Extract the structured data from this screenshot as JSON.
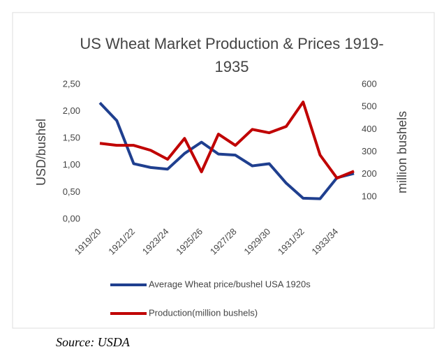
{
  "chart_data": {
    "type": "line",
    "title": "US Wheat Market Production & Prices 1919-1935",
    "ylabel": "USD/bushel",
    "y2label": "million bushels",
    "categories": [
      "1919/20",
      null,
      "1921/22",
      null,
      "1923/24",
      null,
      "1925/26",
      null,
      "1927/28",
      null,
      "1929/30",
      null,
      "1931/32",
      null,
      "1933/34",
      null
    ],
    "series": [
      {
        "name": "Average Wheat price/bushel USA 1920s",
        "color": "#1f3f8f",
        "axis": "y",
        "values": [
          2.16,
          1.83,
          1.03,
          0.96,
          0.93,
          1.22,
          1.43,
          1.21,
          1.19,
          0.99,
          1.03,
          0.67,
          0.39,
          0.38,
          0.77,
          0.85
        ]
      },
      {
        "name": "Production(million bushels)",
        "color": "#c00000",
        "axis": "y2",
        "values": [
          338,
          329,
          329,
          307,
          267,
          360,
          211,
          379,
          329,
          400,
          385,
          413,
          522,
          286,
          183,
          214
        ]
      }
    ],
    "ylim": [
      0,
      2.5
    ],
    "yticks": [
      {
        "value": 0,
        "label": "0,00"
      },
      {
        "value": 0.5,
        "label": "0,50"
      },
      {
        "value": 1,
        "label": "1,00"
      },
      {
        "value": 1.5,
        "label": "1,50"
      },
      {
        "value": 2,
        "label": "2,00"
      },
      {
        "value": 2.5,
        "label": "2,50"
      }
    ],
    "y2lim": [
      0,
      600
    ],
    "y2ticks": [
      100,
      200,
      300,
      400,
      500,
      600
    ],
    "grid": false,
    "legend": "bottom",
    "source": "Source: USDA"
  }
}
